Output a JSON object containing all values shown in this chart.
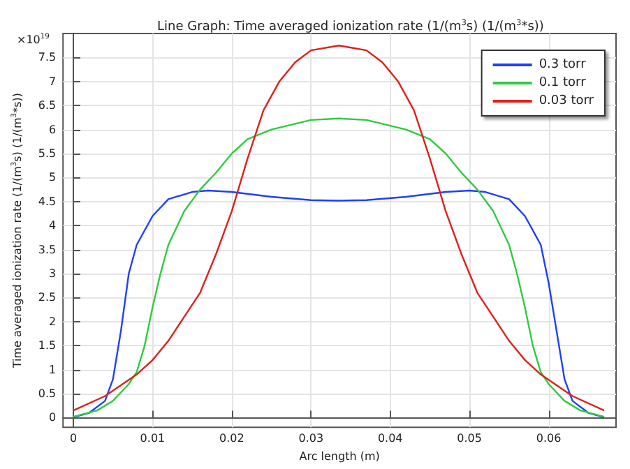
{
  "chart_data": {
    "type": "line",
    "title": "Line Graph: Time averaged ionization rate (1/(m$^{3}$s) (1/(m$^{3}$*s))",
    "xlabel": "Arc length (m)",
    "ylabel": "Time averaged ionization rate (1/(m$^{3}$s) (1/(m$^{3}$*s))",
    "annotations": [
      "×10$^{19}$"
    ],
    "series": [
      {
        "name": "0.3 torr",
        "color": "#1f3fff",
        "x": [
          0,
          0.002,
          0.004,
          0.005,
          0.006,
          0.007,
          0.008,
          0.01,
          0.012,
          0.015,
          0.017,
          0.02,
          0.025,
          0.03,
          0.0335,
          0.037,
          0.042,
          0.047,
          0.05,
          0.052,
          0.055,
          0.057,
          0.059,
          0.06,
          0.061,
          0.062,
          0.063,
          0.065,
          0.067
        ],
        "values": [
          0.01,
          0.1,
          0.35,
          0.8,
          1.8,
          3.0,
          3.6,
          4.2,
          4.55,
          4.7,
          4.73,
          4.7,
          4.6,
          4.53,
          4.52,
          4.53,
          4.6,
          4.7,
          4.73,
          4.7,
          4.55,
          4.2,
          3.6,
          2.8,
          1.8,
          0.8,
          0.35,
          0.1,
          0.01
        ]
      },
      {
        "name": "0.1 torr",
        "color": "#2ecc40",
        "x": [
          0,
          0.003,
          0.005,
          0.007,
          0.008,
          0.009,
          0.01,
          0.011,
          0.012,
          0.014,
          0.016,
          0.018,
          0.02,
          0.022,
          0.025,
          0.03,
          0.0335,
          0.037,
          0.042,
          0.045,
          0.047,
          0.049,
          0.051,
          0.053,
          0.055,
          0.056,
          0.057,
          0.058,
          0.059,
          0.06,
          0.062,
          0.064,
          0.067
        ],
        "values": [
          0.02,
          0.15,
          0.35,
          0.7,
          0.95,
          1.5,
          2.3,
          3.0,
          3.6,
          4.3,
          4.75,
          5.1,
          5.5,
          5.8,
          6.0,
          6.2,
          6.23,
          6.2,
          6.0,
          5.8,
          5.5,
          5.1,
          4.75,
          4.3,
          3.6,
          3.0,
          2.3,
          1.5,
          0.95,
          0.7,
          0.35,
          0.15,
          0.02
        ]
      },
      {
        "name": "0.03 torr",
        "color": "#e0201b",
        "x": [
          0,
          0.004,
          0.008,
          0.01,
          0.012,
          0.014,
          0.016,
          0.018,
          0.02,
          0.022,
          0.024,
          0.026,
          0.028,
          0.03,
          0.0335,
          0.037,
          0.039,
          0.041,
          0.043,
          0.045,
          0.047,
          0.049,
          0.051,
          0.053,
          0.055,
          0.057,
          0.059,
          0.063,
          0.067
        ],
        "values": [
          0.15,
          0.45,
          0.9,
          1.2,
          1.6,
          2.1,
          2.6,
          3.4,
          4.3,
          5.4,
          6.4,
          7.0,
          7.4,
          7.65,
          7.75,
          7.65,
          7.4,
          7.0,
          6.4,
          5.4,
          4.3,
          3.4,
          2.6,
          2.1,
          1.6,
          1.2,
          0.9,
          0.45,
          0.15
        ]
      }
    ],
    "xlim": [
      -0.0013,
      0.0685
    ],
    "xticks": [
      0,
      0.01,
      0.02,
      0.03,
      0.04,
      0.05,
      0.06
    ],
    "ylim": [
      -0.2,
      8
    ],
    "yticks": [
      0,
      0.5,
      1,
      1.5,
      2,
      2.5,
      3,
      3.5,
      4,
      4.5,
      5,
      5.5,
      6,
      6.5,
      7,
      7.5
    ],
    "grid": true,
    "legend": "top right",
    "marker": "none",
    "line_style": "solid"
  }
}
